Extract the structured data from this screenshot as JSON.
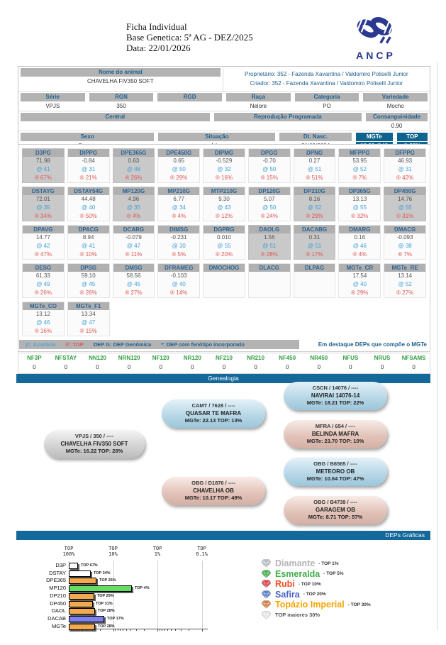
{
  "header": {
    "title": "Ficha Individual",
    "base_line": "Base Genetica: 5ª AG - DEZ/2025",
    "date_line": "Data: 22/01/2026",
    "logo_text": "ANCP"
  },
  "info": {
    "nome_label": "Nome do animal",
    "nome": "CHAVELHA FIV350 SOFT",
    "proprietario": "Proprietário: 352 - Fazenda Xavantina / Valdomiro Poliselli Junior",
    "criador": "Criador: 352 - Fazenda Xavantina / Valdomiro Poliselli Junior",
    "row_serie": [
      {
        "label": "Série",
        "value": "VPJS"
      },
      {
        "label": "RGN",
        "value": "350"
      },
      {
        "label": "RGD",
        "value": ""
      },
      {
        "label": "Raça",
        "value": "Nelore"
      },
      {
        "label": "Categoria",
        "value": "PO"
      },
      {
        "label": "Variedade",
        "value": "Mocho"
      }
    ],
    "row_central": [
      {
        "label": "Central",
        "value": ""
      },
      {
        "label": "Reprodução Programada",
        "value": ""
      },
      {
        "label": "Consanguinidade",
        "value": "0.90"
      }
    ],
    "row_sexo": [
      {
        "label": "Sexo",
        "value": "Femea"
      },
      {
        "label": "Situação",
        "value": "Ativo"
      },
      {
        "label": "Dt. Nasc.",
        "value": "21/09/2024"
      },
      {
        "label": "MGTe",
        "value": "16.22  @49",
        "blue": true
      },
      {
        "label": "TOP",
        "value": "® 28%",
        "blue": true
      }
    ]
  },
  "dep_grid": {
    "rows": [
      [
        {
          "name": "D3PG",
          "value": "71.98",
          "acc": "@ 41",
          "top": "® 67%",
          "highlight": true
        },
        {
          "name": "DIPPG",
          "value": "-0.84",
          "acc": "@ 31",
          "top": "® 21%"
        },
        {
          "name": "DPE365G",
          "value": "0.63",
          "acc": "@ 48",
          "top": "® 26%",
          "highlight": true
        },
        {
          "name": "DPE450G",
          "value": "0.65",
          "acc": "@ 50",
          "top": "® 29%"
        },
        {
          "name": "DIPMG",
          "value": "-0.529",
          "acc": "@ 32",
          "top": "® 16%"
        },
        {
          "name": "DPGG",
          "value": "-0.70",
          "acc": "@ 50",
          "top": "® 15%"
        },
        {
          "name": "DPNG",
          "value": "0.27",
          "acc": "@ 51",
          "top": "® 51%"
        },
        {
          "name": "MFPPG",
          "value": "53.95",
          "acc": "@ 52",
          "top": "® 7%"
        },
        {
          "name": "DFPPG",
          "value": "46.93",
          "acc": "@ 31",
          "top": "® 42%"
        }
      ],
      [
        {
          "name": "DSTAYG",
          "value": "72.01",
          "acc": "@ 35",
          "top": "® 34%",
          "highlight": true
        },
        {
          "name": "DSTAY54G",
          "value": "44.48",
          "acc": "@ 40",
          "top": "® 50%"
        },
        {
          "name": "MP120G",
          "value": "4.96",
          "acc": "@ 35",
          "top": "® 4%",
          "highlight": true
        },
        {
          "name": "MP210G",
          "value": "6.77",
          "acc": "@ 34",
          "top": "® 4%"
        },
        {
          "name": "MTP210G",
          "value": "9.30",
          "acc": "@ 43",
          "top": "® 12%"
        },
        {
          "name": "DP120G",
          "value": "5.07",
          "acc": "@ 50",
          "top": "® 24%"
        },
        {
          "name": "DP210G",
          "value": "8.16",
          "acc": "@ 52",
          "top": "® 29%",
          "highlight": true
        },
        {
          "name": "DP365G",
          "value": "13.13",
          "acc": "@ 55",
          "top": "® 32%"
        },
        {
          "name": "DP450G",
          "value": "14.76",
          "acc": "@ 55",
          "top": "® 31%",
          "highlight": true
        }
      ],
      [
        {
          "name": "DPAVG",
          "value": "14.77",
          "acc": "@ 42",
          "top": "® 47%"
        },
        {
          "name": "DPACG",
          "value": "8.94",
          "acc": "@ 41",
          "top": "® 10%"
        },
        {
          "name": "DCARG",
          "value": "-0.079",
          "acc": "@ 47",
          "top": "® 11%"
        },
        {
          "name": "DIMSG",
          "value": "-0.231",
          "acc": "@ 30",
          "top": "® 5%"
        },
        {
          "name": "DGPRG",
          "value": "0.010",
          "acc": "@ 55",
          "top": "® 20%"
        },
        {
          "name": "DAOLG",
          "value": "1.56",
          "acc": "@ 51",
          "top": "® 28%",
          "highlight": true
        },
        {
          "name": "DACABG",
          "value": "0.31",
          "acc": "@ 51",
          "top": "® 17%",
          "highlight": true
        },
        {
          "name": "DMARG",
          "value": "0.16",
          "acc": "@ 46",
          "top": "® 4%"
        },
        {
          "name": "DMACG",
          "value": "-0.093",
          "acc": "@ 38",
          "top": "® 7%"
        }
      ],
      [
        {
          "name": "DESG",
          "value": "61.33",
          "acc": "@ 49",
          "top": "® 26%"
        },
        {
          "name": "DPSG",
          "value": "59.10",
          "acc": "@ 45",
          "top": "® 26%"
        },
        {
          "name": "DMSG",
          "value": "58.56",
          "acc": "@ 45",
          "top": "® 27%"
        },
        {
          "name": "DFRAMEG",
          "value": "-0.103",
          "acc": "@ 40",
          "top": "® 14%"
        },
        {
          "name": "DMOCHOG",
          "empty": true
        },
        {
          "name": "DLACG",
          "empty": true
        },
        {
          "name": "DLPAG",
          "empty": true
        },
        {
          "name": "MGTe_CR",
          "value": "17.54",
          "acc": "@ 40",
          "top": "® 29%"
        },
        {
          "name": "MGTe_RE",
          "value": "13.14",
          "acc": "@ 52",
          "top": "® 27%"
        }
      ],
      [
        {
          "name": "MGTe_CO",
          "value": "13.12",
          "acc": "@ 46",
          "top": "® 16%"
        },
        {
          "name": "MGTe_F1",
          "value": "13.34",
          "acc": "@ 47",
          "top": "® 15%"
        }
      ]
    ],
    "legend": {
      "acuracia": "@: Acurácia",
      "top": "®: TOP",
      "dep_g": "DEP G: DEP Genômica",
      "fenotipo": "*: DEP com fenótipo incorporado",
      "destaque": "Em destaque DEPs que compõe o MGTe"
    }
  },
  "nf_table": {
    "columns": [
      {
        "label": "NF3P",
        "value": "0"
      },
      {
        "label": "NFSTAY",
        "value": "0"
      },
      {
        "label": "NN120",
        "value": "0"
      },
      {
        "label": "NRN120",
        "value": "0"
      },
      {
        "label": "NF120",
        "value": "0"
      },
      {
        "label": "NR120",
        "value": "0"
      },
      {
        "label": "NF210",
        "value": "0"
      },
      {
        "label": "NR210",
        "value": "0"
      },
      {
        "label": "NF450",
        "value": "0"
      },
      {
        "label": "NR450",
        "value": "0"
      },
      {
        "label": "NFUS",
        "value": "0"
      },
      {
        "label": "NRUS",
        "value": "0"
      },
      {
        "label": "NFSAMS",
        "value": "0"
      }
    ]
  },
  "sections": {
    "genealogia": "Genealogia",
    "deps_graficas": "DEPs Gráficas"
  },
  "genealogy": {
    "pills": [
      {
        "slot": "animal",
        "color": "gray",
        "line1": "VPJS / 350 / ----",
        "line2": "CHAVELHA FIV350 SOFT",
        "line3": "MGTe: 16.22   TOP: 28%"
      },
      {
        "slot": "sire",
        "color": "blue",
        "line1": "CAMT / 7628 / ----",
        "line2": "QUASAR TE MAFRA",
        "line3": "MGTe: 22.13   TOP: 13%"
      },
      {
        "slot": "dam",
        "color": "pink",
        "line1": "OBG / D1876 / ----",
        "line2": "CHAVELHA OB",
        "line3": "MGTe: 10.17   TOP: 49%"
      },
      {
        "slot": "gp1",
        "color": "blue",
        "line1": "CSCN / 14076 / ----",
        "line2": "NAVIRAI 14076-14",
        "line3": "MGTe: 18.21   TOP: 22%"
      },
      {
        "slot": "gp2",
        "color": "pink",
        "line1": "MFRA / 654 / ----",
        "line2": "BELINDA MAFRA",
        "line3": "MGTe: 23.70   TOP: 10%"
      },
      {
        "slot": "gp3",
        "color": "blue",
        "line1": "OBG / B6565 / ----",
        "line2": "METEORO OB",
        "line3": "MGTe: 10.64   TOP: 47%"
      },
      {
        "slot": "gp4",
        "color": "pink",
        "line1": "OBG / B4739 / ----",
        "line2": "GARAGEM OB",
        "line3": "MGTe: 8.71   TOP: 57%"
      }
    ]
  },
  "chart_data": {
    "type": "bar",
    "title": "DEPs Gráficas",
    "orientation": "horizontal",
    "x_scale": "log",
    "x_axis": {
      "label_prefix": "TOP",
      "ticks": [
        "100%",
        "10%",
        "1%",
        "0.1%"
      ]
    },
    "categories": [
      "D3P",
      "DSTAY",
      "DPE365",
      "MP120",
      "DP210",
      "DP450",
      "DAOL",
      "DACAB",
      "MGTe"
    ],
    "values_top_pct": [
      67,
      34,
      26,
      4,
      29,
      31,
      28,
      17,
      28
    ],
    "bar_labels": [
      "TOP 67%",
      "TOP 34%",
      "TOP 26%",
      "TOP 4%",
      "TOP 29%",
      "TOP 31%",
      "TOP 28%",
      "TOP 17%",
      "TOP 28%"
    ],
    "bar_colors": [
      "#ffffff",
      "#ffffff",
      "#f3aa4e",
      "#63dd63",
      "#f3aa4e",
      "#f3aa4e",
      "#f3aa4e",
      "#8080ee",
      "#f3aa4e"
    ],
    "grid": true,
    "legend_position": "right"
  },
  "chart_legend": {
    "items": [
      {
        "name": "Diamante",
        "suffix": "- TOP 1%",
        "name_color": "#b4b4b4",
        "gem_color": "#b9bec4"
      },
      {
        "name": "Esmeralda",
        "suffix": "- TOP 5%",
        "name_color": "#3fae49",
        "gem_color": "#48b24c"
      },
      {
        "name": "Rubi",
        "suffix": "- TOP 10%",
        "name_color": "#ee4e23",
        "gem_color": "#d94350"
      },
      {
        "name": "Safira",
        "suffix": "- TOP 20%",
        "name_color": "#4b63c8",
        "gem_color": "#5b7fd0"
      },
      {
        "name": "Topázio Imperial",
        "suffix": "- TOP 30%",
        "name_color": "#f7a400",
        "gem_color": "#cf7f3e"
      },
      {
        "name": "TOP maiores 30%",
        "suffix": "",
        "name_color": "#555555",
        "gem_color": "#e4e8ea",
        "small": true
      }
    ]
  }
}
